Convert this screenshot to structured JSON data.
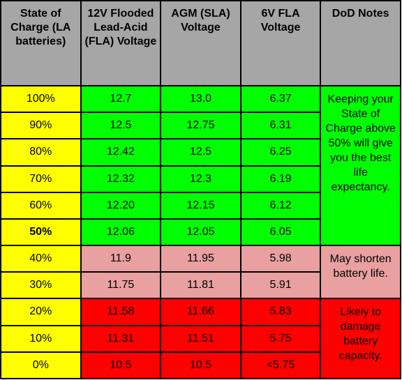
{
  "table": {
    "header": [
      "State of Charge (LA batteries)",
      "12V Flooded Lead-Acid (FLA) Voltage",
      "AGM (SLA) Voltage",
      "6V FLA Voltage",
      "DoD Notes"
    ],
    "header_color": "#a6a6a6",
    "first_column_color": "#ffff00",
    "groups": [
      {
        "color": "#00ff00",
        "note": "Keeping your State of Charge above 50% will give you the best life expectancy.",
        "rows": [
          [
            "100%",
            "12.7",
            "13.0",
            "6.37"
          ],
          [
            "90%",
            "12.5",
            "12.75",
            "6.31"
          ],
          [
            "80%",
            "12.42",
            "12.5",
            "6.25"
          ],
          [
            "70%",
            "12.32",
            "12.3",
            "6.19"
          ],
          [
            "60%",
            "12.20",
            "12.15",
            "6.12"
          ],
          [
            "50%",
            "12.06",
            "12.05",
            "6.05"
          ]
        ]
      },
      {
        "color": "#e8a0a0",
        "note": "May shorten battery life.",
        "rows": [
          [
            "40%",
            "11.9",
            "11.95",
            "5.98"
          ],
          [
            "30%",
            "11.75",
            "11.81",
            "5.91"
          ]
        ]
      },
      {
        "color": "#ff0000",
        "note": "Likely to damage battery capacity.",
        "rows": [
          [
            "20%",
            "11.58",
            "11.66",
            "5.83"
          ],
          [
            "10%",
            "11.31",
            "11.51",
            "5.75"
          ],
          [
            "0%",
            "10.5",
            "10.5",
            "<5.75"
          ]
        ]
      }
    ]
  }
}
